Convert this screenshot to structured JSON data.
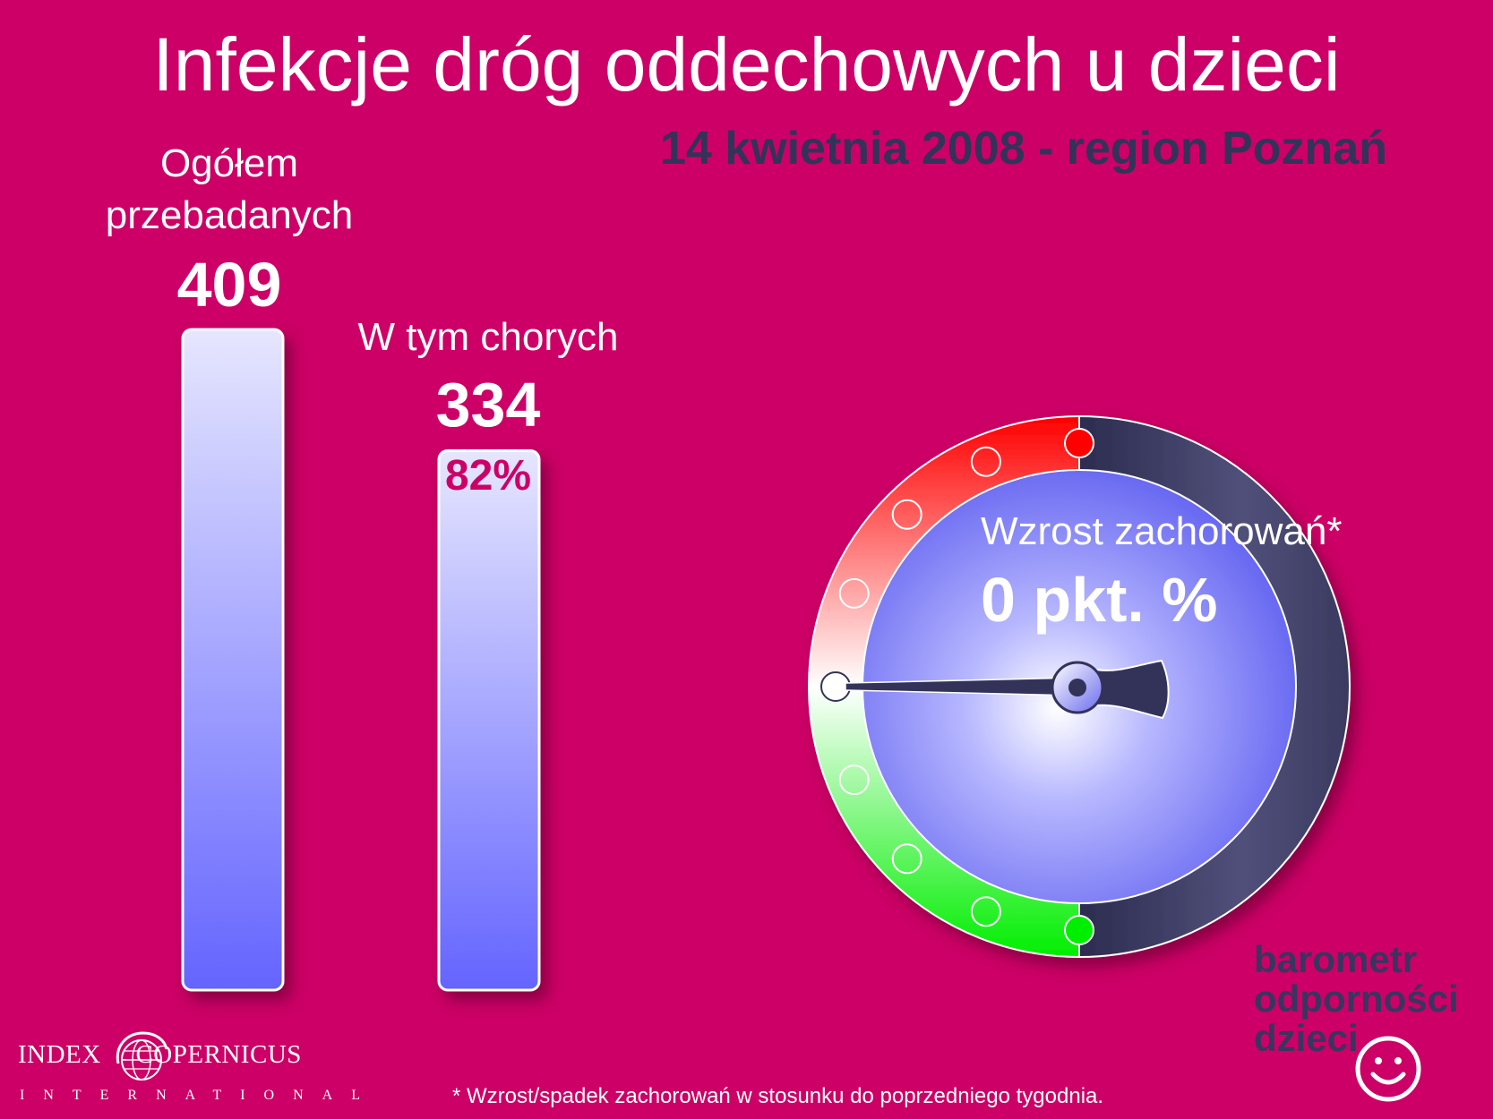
{
  "title": "Infekcje dróg oddechowych u dzieci",
  "subtitle": "14 kwietnia 2008 - region Poznań",
  "chart_data": [
    {
      "type": "bar",
      "categories": [
        "Ogółem przebadanych",
        "W tym chorych"
      ],
      "category_lines": [
        [
          "Ogółem",
          "przebadanych"
        ],
        [
          "W tym chorych"
        ]
      ],
      "values": [
        409,
        334
      ],
      "value_labels": [
        "409",
        "334"
      ],
      "share_label": "82%",
      "colors": {
        "bar_top": "#e6e6ff",
        "bar_bottom": "#6464ff"
      }
    },
    {
      "type": "gauge",
      "label": "Wzrost zachorowań*",
      "value_label": "0 pkt. %",
      "value": 0,
      "zones": [
        "spadek",
        "wzrost"
      ],
      "colors": {
        "increase": "#ff0000",
        "decrease": "#00ee00",
        "dial": "#7070ff",
        "needle": "#33335a",
        "rim_dark": "#3c3c60"
      }
    }
  ],
  "footnote": "* Wzrost/spadek zachorowań w stosunku do poprzedniego tygodnia.",
  "publisher": {
    "name_left": "INDEX",
    "name_right": "COPERNICUS",
    "sub": "INTERNATIONAL"
  },
  "brand": {
    "line1": "barometr",
    "line2": "odporności",
    "line3": "dzieci"
  },
  "colors": {
    "background": "#cc0066",
    "subtitle": "#33335a",
    "brand": "#3a3560"
  }
}
